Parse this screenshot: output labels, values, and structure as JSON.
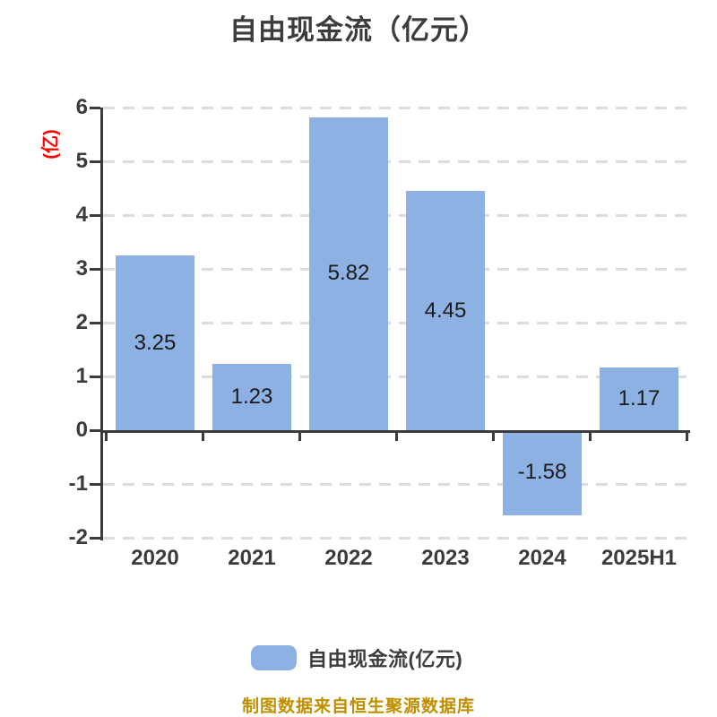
{
  "header": {
    "title": "自由现金流（亿元）"
  },
  "y_axis": {
    "unit_label": "(亿)",
    "tick_labels": [
      "6",
      "5",
      "4",
      "3",
      "2",
      "1",
      "0",
      "-1",
      "-2"
    ]
  },
  "legend": {
    "label": "自由现金流(亿元)",
    "swatch_color": "#8db1e2"
  },
  "footer": {
    "credit": "制图数据来自恒生聚源数据库"
  },
  "colors": {
    "bar_fill": "#8db1e2",
    "axis": "#3b3b3b",
    "gridline": "#dcdcdc",
    "title_text": "#3c3c3c",
    "value_label_text": "#1a1a1a",
    "unit_label_text": "#ff0000",
    "footer_text": "#bf8f00",
    "background": "#ffffff"
  },
  "chart_data": {
    "type": "bar",
    "title": "自由现金流（亿元）",
    "categories": [
      "2020",
      "2021",
      "2022",
      "2023",
      "2024",
      "2025H1"
    ],
    "values": [
      3.25,
      1.23,
      5.82,
      4.45,
      -1.58,
      1.17
    ],
    "value_labels": [
      "3.25",
      "1.23",
      "5.82",
      "4.45",
      "-1.58",
      "1.17"
    ],
    "series_name": "自由现金流(亿元)",
    "xlabel": "",
    "ylabel": "(亿)",
    "ylim": [
      -2,
      6
    ],
    "ytick_step": 1,
    "grid": "dashed-horizontal",
    "legend_position": "bottom",
    "value_labels_inside_bars": true
  }
}
